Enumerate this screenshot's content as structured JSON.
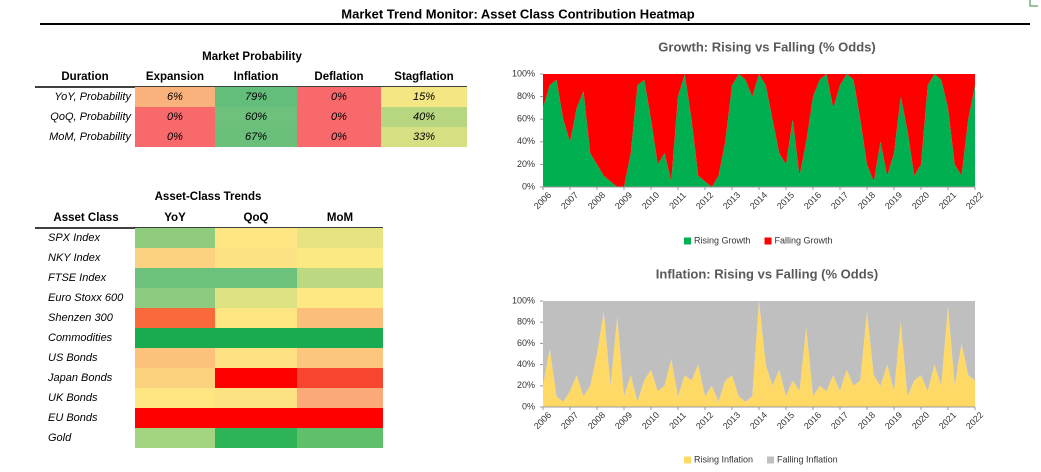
{
  "title": "Market Trend Monitor: Asset Class Contribution Heatmap",
  "probability_table": {
    "title": "Market Probability",
    "columns": [
      "Duration",
      "Expansion",
      "Inflation",
      "Deflation",
      "Stagflation"
    ],
    "rows": [
      [
        "YoY, Probability",
        "6%",
        "79%",
        "0%",
        "15%"
      ],
      [
        "QoQ, Probability",
        "0%",
        "60%",
        "0%",
        "40%"
      ],
      [
        "MoM, Probability",
        "0%",
        "67%",
        "0%",
        "33%"
      ]
    ],
    "colors": [
      [
        "#f9b27b",
        "#63be7b",
        "#f8696b",
        "#f4e683"
      ],
      [
        "#f8696b",
        "#6ec17c",
        "#f8696b",
        "#b6d77f"
      ],
      [
        "#f8696b",
        "#6ac07b",
        "#f8696b",
        "#d6df81"
      ]
    ]
  },
  "trends_table": {
    "title": "Asset-Class Trends",
    "columns": [
      "Asset Class",
      "YoY",
      "QoQ",
      "MoM"
    ],
    "rows": [
      "SPX Index",
      "NKY Index",
      "FTSE Index",
      "Euro Stoxx 600",
      "Shenzen 300",
      "Commodities",
      "US Bonds",
      "Japan Bonds",
      "UK Bonds",
      "EU Bonds",
      "Gold"
    ],
    "colors": [
      [
        "#8fcc7e",
        "#fde683",
        "#e6e383"
      ],
      [
        "#fcd17f",
        "#fde283",
        "#fbe983"
      ],
      [
        "#6cc17c",
        "#6cc17c",
        "#bcd881"
      ],
      [
        "#8ccb7e",
        "#dee282",
        "#fee883"
      ],
      [
        "#f8693b",
        "#fde582",
        "#fcbf7b"
      ],
      [
        "#1aab50",
        "#1aab50",
        "#1aab50"
      ],
      [
        "#fcc27c",
        "#fee182",
        "#fcc67c"
      ],
      [
        "#fdd27f",
        "#ff0000",
        "#f8452f"
      ],
      [
        "#fee683",
        "#fde283",
        "#fbaa77"
      ],
      [
        "#ff0000",
        "#ff0000",
        "#ff0000"
      ],
      [
        "#a3d47f",
        "#2db458",
        "#5fbf6b"
      ]
    ]
  },
  "chart_data": [
    {
      "type": "stacked_area",
      "title": "Growth: Rising vs Falling (% Odds)",
      "x": [
        2006,
        2006.25,
        2006.5,
        2006.75,
        2007,
        2007.25,
        2007.5,
        2007.75,
        2008,
        2008.25,
        2008.5,
        2008.75,
        2009,
        2009.25,
        2009.5,
        2009.75,
        2010,
        2010.25,
        2010.5,
        2010.75,
        2011,
        2011.25,
        2011.5,
        2011.75,
        2012,
        2012.25,
        2012.5,
        2012.75,
        2013,
        2013.25,
        2013.5,
        2013.75,
        2014,
        2014.25,
        2014.5,
        2014.75,
        2015,
        2015.25,
        2015.5,
        2015.75,
        2016,
        2016.25,
        2016.5,
        2016.75,
        2017,
        2017.25,
        2017.5,
        2017.75,
        2018,
        2018.25,
        2018.5,
        2018.75,
        2019,
        2019.25,
        2019.5,
        2019.75,
        2020,
        2020.25,
        2020.5,
        2020.75,
        2021,
        2021.25,
        2021.5,
        2021.75,
        2022
      ],
      "series": [
        {
          "name": "Rising Growth",
          "color": "#00b050",
          "values": [
            70,
            90,
            95,
            60,
            40,
            70,
            85,
            30,
            20,
            10,
            5,
            0,
            0,
            30,
            90,
            95,
            60,
            20,
            30,
            5,
            80,
            100,
            60,
            10,
            5,
            0,
            10,
            40,
            90,
            100,
            95,
            80,
            100,
            90,
            60,
            30,
            20,
            60,
            10,
            40,
            80,
            95,
            100,
            70,
            90,
            100,
            95,
            60,
            20,
            5,
            40,
            10,
            30,
            80,
            50,
            10,
            20,
            90,
            100,
            95,
            70,
            20,
            10,
            60,
            90
          ]
        },
        {
          "name": "Falling Growth",
          "color": "#ff0000",
          "values": [
            30,
            10,
            5,
            40,
            60,
            30,
            15,
            70,
            80,
            90,
            95,
            100,
            100,
            70,
            10,
            5,
            40,
            80,
            70,
            95,
            20,
            0,
            40,
            90,
            95,
            100,
            90,
            60,
            10,
            0,
            5,
            20,
            0,
            10,
            40,
            70,
            80,
            40,
            90,
            60,
            20,
            5,
            0,
            30,
            10,
            0,
            5,
            40,
            80,
            95,
            60,
            90,
            70,
            20,
            50,
            90,
            80,
            10,
            0,
            5,
            30,
            80,
            90,
            40,
            10
          ]
        }
      ],
      "xlim": [
        2006,
        2022
      ],
      "xticks": [
        2006,
        2007,
        2008,
        2009,
        2010,
        2011,
        2012,
        2013,
        2014,
        2015,
        2016,
        2017,
        2018,
        2019,
        2020,
        2021,
        2022
      ],
      "ylim": [
        0,
        100
      ],
      "yticks": [
        {
          "value": 0,
          "label": "0%"
        },
        {
          "value": 20,
          "label": "20%"
        },
        {
          "value": 40,
          "label": "40%"
        },
        {
          "value": 60,
          "label": "60%"
        },
        {
          "value": 80,
          "label": "80%"
        },
        {
          "value": 100,
          "label": "100%"
        }
      ],
      "legend": "bottom"
    },
    {
      "type": "stacked_area",
      "title": "Inflation: Rising vs Falling  (% Odds)",
      "x": [
        2006,
        2006.25,
        2006.5,
        2006.75,
        2007,
        2007.25,
        2007.5,
        2007.75,
        2008,
        2008.25,
        2008.5,
        2008.75,
        2009,
        2009.25,
        2009.5,
        2009.75,
        2010,
        2010.25,
        2010.5,
        2010.75,
        2011,
        2011.25,
        2011.5,
        2011.75,
        2012,
        2012.25,
        2012.5,
        2012.75,
        2013,
        2013.25,
        2013.5,
        2013.75,
        2014,
        2014.25,
        2014.5,
        2014.75,
        2015,
        2015.25,
        2015.5,
        2015.75,
        2016,
        2016.25,
        2016.5,
        2016.75,
        2017,
        2017.25,
        2017.5,
        2017.75,
        2018,
        2018.25,
        2018.5,
        2018.75,
        2019,
        2019.25,
        2019.5,
        2019.75,
        2020,
        2020.25,
        2020.5,
        2020.75,
        2021,
        2021.25,
        2021.5,
        2021.75,
        2022
      ],
      "series": [
        {
          "name": "Rising Inflation",
          "color": "#ffd966",
          "values": [
            20,
            55,
            10,
            5,
            15,
            30,
            10,
            20,
            50,
            90,
            20,
            85,
            10,
            30,
            5,
            25,
            35,
            15,
            20,
            45,
            10,
            30,
            25,
            40,
            10,
            20,
            5,
            25,
            30,
            10,
            5,
            10,
            100,
            40,
            20,
            35,
            10,
            25,
            15,
            75,
            10,
            20,
            15,
            30,
            15,
            35,
            20,
            25,
            90,
            30,
            20,
            40,
            15,
            80,
            10,
            25,
            30,
            15,
            40,
            20,
            95,
            20,
            60,
            30,
            25
          ]
        },
        {
          "name": "Falling Inflation",
          "color": "#bfbfbf",
          "values": [
            80,
            45,
            90,
            95,
            85,
            70,
            90,
            80,
            50,
            10,
            80,
            15,
            90,
            70,
            95,
            75,
            65,
            85,
            80,
            55,
            90,
            70,
            75,
            60,
            90,
            80,
            95,
            75,
            70,
            90,
            95,
            90,
            0,
            60,
            80,
            65,
            90,
            75,
            85,
            25,
            90,
            80,
            85,
            70,
            85,
            65,
            80,
            75,
            10,
            70,
            80,
            60,
            85,
            20,
            90,
            75,
            70,
            85,
            60,
            80,
            5,
            80,
            40,
            70,
            75
          ]
        }
      ],
      "xlim": [
        2006,
        2022
      ],
      "xticks": [
        2006,
        2007,
        2008,
        2009,
        2010,
        2011,
        2012,
        2013,
        2014,
        2015,
        2016,
        2017,
        2018,
        2019,
        2020,
        2021,
        2022
      ],
      "ylim": [
        0,
        100
      ],
      "yticks": [
        {
          "value": 0,
          "label": "0%"
        },
        {
          "value": 20,
          "label": "20%"
        },
        {
          "value": 40,
          "label": "40%"
        },
        {
          "value": 60,
          "label": "60%"
        },
        {
          "value": 80,
          "label": "80%"
        },
        {
          "value": 100,
          "label": "100%"
        }
      ],
      "legend": "bottom"
    }
  ]
}
